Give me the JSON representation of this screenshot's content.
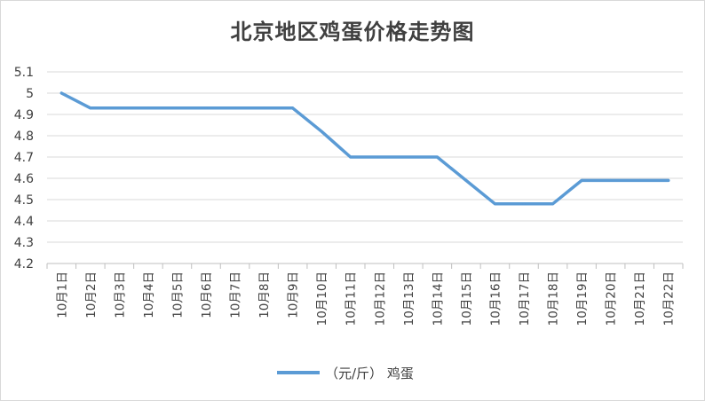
{
  "chart_data": {
    "type": "line",
    "title": "北京地区鸡蛋价格走势图",
    "xlabel": "",
    "ylabel": "",
    "categories": [
      "10月1日",
      "10月2日",
      "10月3日",
      "10月4日",
      "10月5日",
      "10月6日",
      "10月7日",
      "10月8日",
      "10月9日",
      "10月10日",
      "10月11日",
      "10月12日",
      "10月13日",
      "10月14日",
      "10月15日",
      "10月16日",
      "10月17日",
      "10月18日",
      "10月19日",
      "10月20日",
      "10月21日",
      "10月22日"
    ],
    "series": [
      {
        "name": "（元/斤） 鸡蛋",
        "values": [
          5.0,
          4.93,
          4.93,
          4.93,
          4.93,
          4.93,
          4.93,
          4.93,
          4.93,
          4.82,
          4.7,
          4.7,
          4.7,
          4.7,
          4.59,
          4.48,
          4.48,
          4.48,
          4.59,
          4.59,
          4.59,
          4.59
        ]
      }
    ],
    "ylim": [
      4.2,
      5.1
    ],
    "yticks": [
      "4.2",
      "4.3",
      "4.4",
      "4.5",
      "4.6",
      "4.7",
      "4.8",
      "4.9",
      "5",
      "5.1"
    ],
    "grid": true,
    "legend_position": "bottom",
    "line_color": "#5b9bd5"
  }
}
